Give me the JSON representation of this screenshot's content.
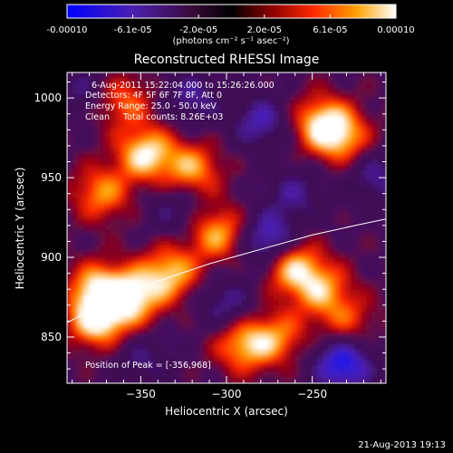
{
  "colorbar": {
    "ticks": [
      "-0.00010",
      "-6.1e-05",
      "-2.0e-05",
      "2.0e-05",
      "6.1e-05",
      "0.00010"
    ],
    "units": "(photons cm⁻² s⁻¹ asec⁻²)",
    "range": [
      -0.0001,
      0.0001
    ]
  },
  "chart_data": {
    "type": "heatmap",
    "title": "Reconstructed RHESSI Image",
    "xlabel": "Heliocentric X (arcsec)",
    "ylabel": "Heliocentric Y (arcsec)",
    "xlim": [
      -393,
      -207
    ],
    "ylim": [
      821,
      1016
    ],
    "x_ticks": [
      -350,
      -300,
      -250
    ],
    "y_ticks": [
      850,
      900,
      950,
      1000
    ],
    "x_tick_labels": [
      "−350",
      "−300",
      "−250"
    ],
    "y_tick_labels": [
      "850",
      "900",
      "950",
      "1000"
    ],
    "colormap": "blue-purple-red-orange-yellow-white",
    "annotations": [
      "6-Aug-2011 15:22:04.000 to 15:26:26.000",
      "Detectors: 4F 5F 6F 7F 8F, Att 0",
      "Energy Range: 25.0 - 50.0 keV",
      "Clean     Total counts: 8.26E+03"
    ],
    "peak_label": "Position of Peak = [-356,968]",
    "limb_curve": [
      [
        -393,
        859
      ],
      [
        -370,
        872
      ],
      [
        -340,
        885
      ],
      [
        -310,
        896
      ],
      [
        -280,
        905
      ],
      [
        -250,
        914
      ],
      [
        -225,
        920
      ],
      [
        -207,
        924
      ]
    ],
    "bright_sources": [
      {
        "x": -347,
        "y": 965,
        "level": 0.95
      },
      {
        "x": -373,
        "y": 940,
        "level": 0.7
      },
      {
        "x": -320,
        "y": 955,
        "level": 0.75
      },
      {
        "x": -245,
        "y": 985,
        "level": 0.8
      },
      {
        "x": -233,
        "y": 975,
        "level": 0.75
      },
      {
        "x": -375,
        "y": 880,
        "level": 0.85
      },
      {
        "x": -355,
        "y": 875,
        "level": 0.9
      },
      {
        "x": -333,
        "y": 890,
        "level": 0.85
      },
      {
        "x": -305,
        "y": 915,
        "level": 0.8
      },
      {
        "x": -262,
        "y": 895,
        "level": 0.9
      },
      {
        "x": -245,
        "y": 880,
        "level": 0.7
      },
      {
        "x": -375,
        "y": 860,
        "level": 0.95
      },
      {
        "x": -290,
        "y": 845,
        "level": 0.8
      },
      {
        "x": -270,
        "y": 850,
        "level": 0.6
      },
      {
        "x": -360,
        "y": 998,
        "level": 0.6
      },
      {
        "x": -230,
        "y": 860,
        "level": 0.5
      }
    ],
    "dark_sources": [
      {
        "x": -275,
        "y": 910,
        "level": -0.85
      },
      {
        "x": -280,
        "y": 985,
        "level": -0.6
      },
      {
        "x": -320,
        "y": 1000,
        "level": -0.5
      },
      {
        "x": -232,
        "y": 833,
        "level": -0.95
      },
      {
        "x": -300,
        "y": 870,
        "level": -0.5
      },
      {
        "x": -330,
        "y": 930,
        "level": -0.4
      },
      {
        "x": -260,
        "y": 940,
        "level": -0.45
      },
      {
        "x": -213,
        "y": 950,
        "level": -0.5
      },
      {
        "x": -350,
        "y": 835,
        "level": -0.4
      },
      {
        "x": -385,
        "y": 1005,
        "level": -0.4
      }
    ]
  },
  "timestamp": "21-Aug-2013 19:13"
}
